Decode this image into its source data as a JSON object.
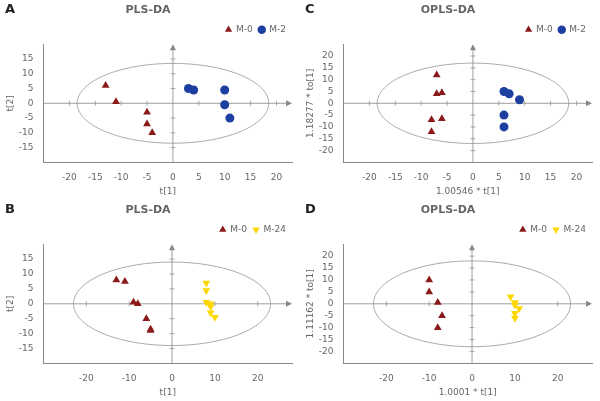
{
  "chart_data": [
    {
      "type": "scatter",
      "title": "PLS-DA",
      "annotations": [
        {
          "text": "A"
        }
      ],
      "xlabel": "t[1]",
      "ylabel": "t[2]",
      "xlim": [
        -25,
        23
      ],
      "ylim": [
        -20,
        20
      ],
      "xticks": [
        -20,
        -15,
        -10,
        -5,
        0,
        5,
        10,
        15,
        20
      ],
      "yticks": [
        -15,
        -10,
        -5,
        0,
        5,
        10,
        15
      ],
      "grid": false,
      "legend": "upper right",
      "ellipse": {
        "center": [
          0,
          0
        ],
        "width": 37,
        "height": 27,
        "angle": 0
      },
      "series": [
        {
          "name": "M-0",
          "color": "#8B1A1A",
          "marker": "triangle",
          "values": [
            [
              -13,
              6
            ],
            [
              -11,
              0.5
            ],
            [
              -5,
              -3
            ],
            [
              -5,
              -7
            ],
            [
              -4,
              -10
            ]
          ]
        },
        {
          "name": "M-2",
          "color": "#1C3FA0",
          "marker": "circle",
          "values": [
            [
              3,
              5
            ],
            [
              4,
              4.5
            ],
            [
              10,
              4.5
            ],
            [
              10,
              -0.5
            ],
            [
              11,
              -5
            ]
          ]
        }
      ]
    },
    {
      "type": "scatter",
      "title": "PLS-DA",
      "annotations": [
        {
          "text": "B"
        }
      ],
      "xlabel": "t[1]",
      "ylabel": "t[2]",
      "xlim": [
        -30,
        28
      ],
      "ylim": [
        -20,
        20
      ],
      "xticks": [
        -20,
        -10,
        0,
        10,
        20
      ],
      "yticks": [
        -15,
        -10,
        -5,
        0,
        5,
        10,
        15
      ],
      "grid": false,
      "legend": "upper right",
      "ellipse": {
        "center": [
          0,
          0
        ],
        "width": 46,
        "height": 28,
        "angle": 0
      },
      "series": [
        {
          "name": "M-0",
          "color": "#8B1A1A",
          "marker": "triangle",
          "values": [
            [
              -13,
              8
            ],
            [
              -11,
              7.5
            ],
            [
              -9,
              0.5
            ],
            [
              -8,
              0
            ],
            [
              -6,
              -5
            ],
            [
              -5,
              -8.5
            ],
            [
              -5,
              -9
            ]
          ]
        },
        {
          "name": "M-24",
          "color": "#FFD700",
          "marker": "triangle_down",
          "values": [
            [
              8,
              7
            ],
            [
              8,
              4.5
            ],
            [
              8,
              0.5
            ],
            [
              9,
              0
            ],
            [
              9,
              -1
            ],
            [
              9,
              -3
            ],
            [
              10,
              -4.5
            ]
          ]
        }
      ]
    },
    {
      "type": "scatter",
      "title": "OPLS-DA",
      "annotations": [
        {
          "text": "C"
        }
      ],
      "xlabel": "1.00546 * t[1]",
      "ylabel": "1.18277 * to[1]",
      "xlim": [
        -25,
        23
      ],
      "ylim": [
        -25,
        25
      ],
      "xticks": [
        -20,
        -15,
        -10,
        -5,
        0,
        5,
        10,
        15,
        20
      ],
      "yticks": [
        -20,
        -15,
        -10,
        -5,
        0,
        5,
        10,
        15,
        20
      ],
      "grid": false,
      "legend": "upper right",
      "ellipse": {
        "center": [
          0,
          0
        ],
        "width": 37,
        "height": 34,
        "angle": 0
      },
      "series": [
        {
          "name": "M-0",
          "color": "#8B1A1A",
          "marker": "triangle",
          "values": [
            [
              -7,
              12
            ],
            [
              -7,
              4
            ],
            [
              -6,
              4.5
            ],
            [
              -6,
              -6.5
            ],
            [
              -8,
              -7
            ],
            [
              -8,
              -12
            ]
          ]
        },
        {
          "name": "M-2",
          "color": "#1C3FA0",
          "marker": "circle",
          "values": [
            [
              6,
              5
            ],
            [
              7,
              4
            ],
            [
              9,
              1.5
            ],
            [
              6,
              -5
            ],
            [
              6,
              -10
            ]
          ]
        }
      ]
    },
    {
      "type": "scatter",
      "title": "OPLS-DA",
      "annotations": [
        {
          "text": "D"
        }
      ],
      "xlabel": "1.0001 * t[1]",
      "ylabel": "1.11162 * to[1]",
      "xlim": [
        -30,
        28
      ],
      "ylim": [
        -25,
        25
      ],
      "xticks": [
        -20,
        -10,
        0,
        10,
        20
      ],
      "yticks": [
        -20,
        -15,
        -10,
        -5,
        0,
        5,
        10,
        15,
        20
      ],
      "grid": false,
      "legend": "upper right",
      "ellipse": {
        "center": [
          0,
          0
        ],
        "width": 46,
        "height": 36,
        "angle": 0
      },
      "series": [
        {
          "name": "M-0",
          "color": "#8B1A1A",
          "marker": "triangle",
          "values": [
            [
              -10,
              10
            ],
            [
              -10,
              5
            ],
            [
              -8,
              0.5
            ],
            [
              -7,
              -5
            ],
            [
              -8,
              -10
            ]
          ]
        },
        {
          "name": "M-24",
          "color": "#FFD700",
          "marker": "triangle_down",
          "values": [
            [
              9,
              3
            ],
            [
              10,
              0.5
            ],
            [
              10,
              -0.5
            ],
            [
              11,
              -2
            ],
            [
              10,
              -4
            ],
            [
              10,
              -6
            ]
          ]
        }
      ]
    }
  ]
}
